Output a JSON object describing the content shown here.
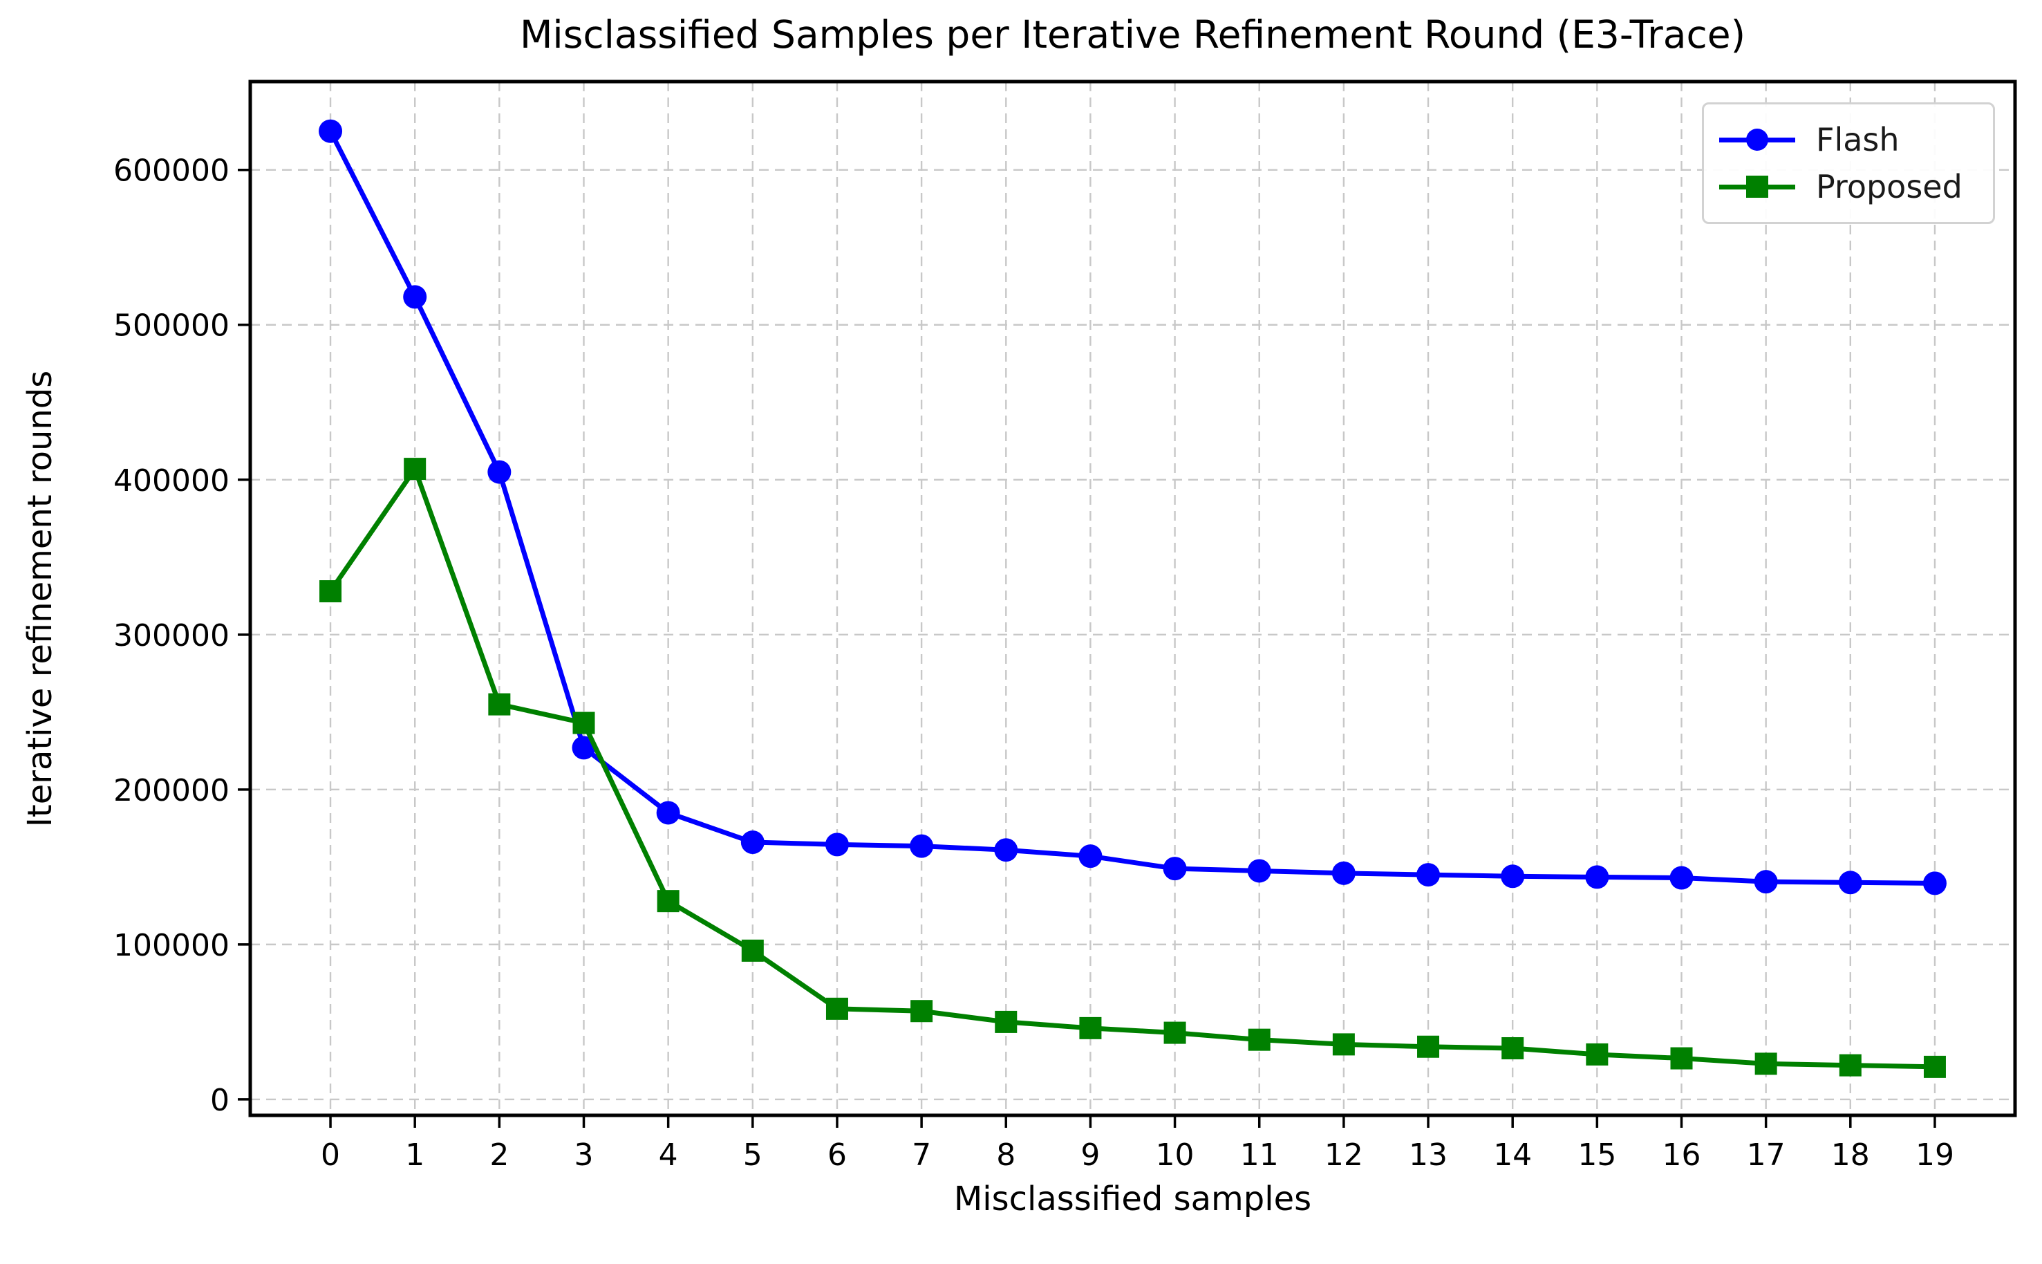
{
  "chart_data": {
    "type": "line",
    "title": "Misclassified Samples per Iterative Refinement Round (E3-Trace)",
    "xlabel": "Misclassified samples",
    "ylabel": "Iterative refinement rounds",
    "x": [
      0,
      1,
      2,
      3,
      4,
      5,
      6,
      7,
      8,
      9,
      10,
      11,
      12,
      13,
      14,
      15,
      16,
      17,
      18,
      19
    ],
    "series": [
      {
        "name": "Flash",
        "color": "#0000ff",
        "marker": "circle",
        "values": [
          625000,
          518000,
          405000,
          227000,
          185000,
          166000,
          164500,
          163500,
          161000,
          157000,
          149000,
          147500,
          146000,
          145000,
          144000,
          143500,
          143000,
          140500,
          140000,
          139500
        ]
      },
      {
        "name": "Proposed",
        "color": "#008000",
        "marker": "square",
        "values": [
          328000,
          407000,
          255000,
          243000,
          128000,
          96000,
          58500,
          57000,
          50000,
          46000,
          43000,
          38500,
          35500,
          34000,
          33000,
          29000,
          26500,
          23000,
          22000,
          21000
        ]
      }
    ],
    "x_ticks": [
      0,
      1,
      2,
      3,
      4,
      5,
      6,
      7,
      8,
      9,
      10,
      11,
      12,
      13,
      14,
      15,
      16,
      17,
      18,
      19
    ],
    "y_ticks": [
      0,
      100000,
      200000,
      300000,
      400000,
      500000,
      600000
    ],
    "xlim": [
      -0.95,
      19.95
    ],
    "ylim": [
      -10300,
      657000
    ],
    "grid": true,
    "grid_style": "dashed",
    "legend_position": "upper right",
    "colors": {
      "background": "#ffffff",
      "axes_background": "#ffffff",
      "spine": "#000000",
      "grid": "#c8c8c8",
      "tick_label": "#000000"
    }
  }
}
